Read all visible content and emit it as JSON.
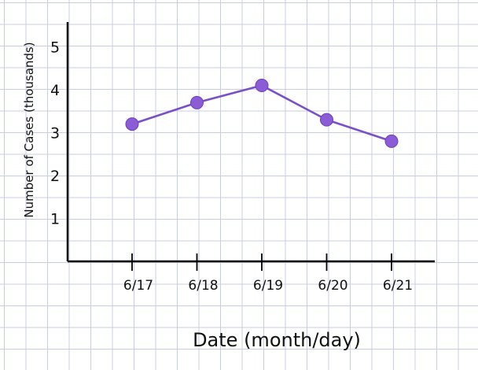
{
  "chart_data": {
    "type": "line",
    "title": "",
    "xlabel": "Date (month/day)",
    "ylabel": "Number of Cases (thousands)",
    "categories": [
      "6/17",
      "6/18",
      "6/19",
      "6/20",
      "6/21"
    ],
    "series": [
      {
        "values": [
          3.2,
          3.7,
          4.1,
          3.3,
          2.8
        ]
      }
    ],
    "yticks": [
      "1",
      "2",
      "3",
      "4",
      "5"
    ],
    "ylim": [
      0,
      5.5
    ],
    "grid": true,
    "legend": "none",
    "colors": {
      "line": "#7b4fc9",
      "marker": "#8b5cd6",
      "axis": "#000000",
      "grid": "#c8cde6"
    }
  }
}
